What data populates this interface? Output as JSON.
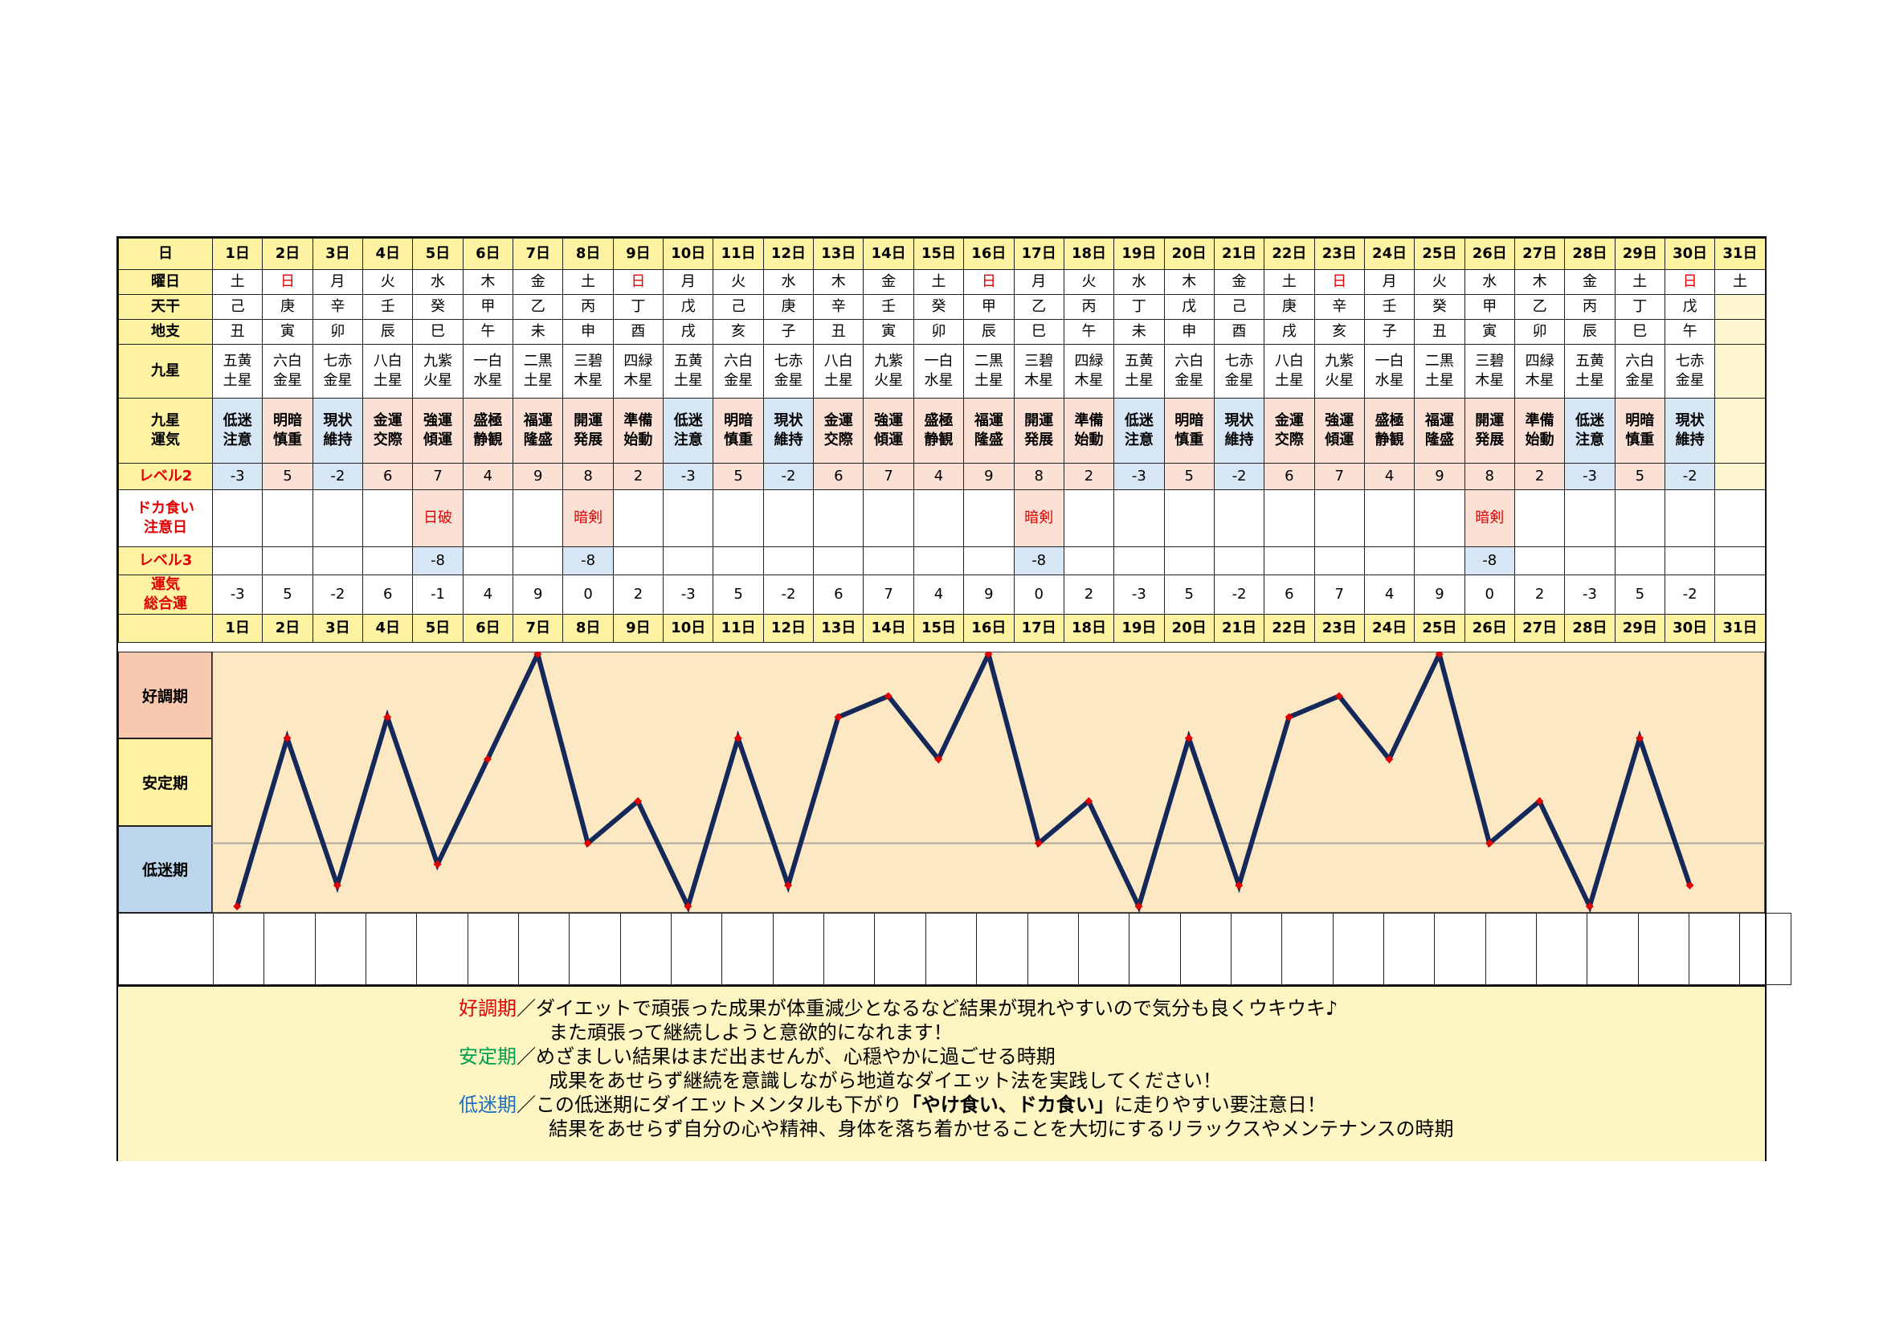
{
  "rows": {
    "day_label": "日",
    "weekday_label": "曜日",
    "tenkan_label": "天干",
    "chishi_label": "地支",
    "kyusei_label": "九星",
    "unki_label": [
      "九星",
      "運気"
    ],
    "level2_label": "レベル2",
    "warning_label": [
      "ドカ食い",
      "注意日"
    ],
    "level3_label": "レベル3",
    "total_label": [
      "運気",
      "総合運"
    ]
  },
  "days": [
    "1日",
    "2日",
    "3日",
    "4日",
    "5日",
    "6日",
    "7日",
    "8日",
    "9日",
    "10日",
    "11日",
    "12日",
    "13日",
    "14日",
    "15日",
    "16日",
    "17日",
    "18日",
    "19日",
    "20日",
    "21日",
    "22日",
    "23日",
    "24日",
    "25日",
    "26日",
    "27日",
    "28日",
    "29日",
    "30日",
    "31日"
  ],
  "weekdays": [
    "土",
    "日",
    "月",
    "火",
    "水",
    "木",
    "金",
    "土",
    "日",
    "月",
    "火",
    "水",
    "木",
    "金",
    "土",
    "日",
    "月",
    "火",
    "水",
    "木",
    "金",
    "土",
    "日",
    "月",
    "火",
    "水",
    "木",
    "金",
    "土",
    "日",
    "土"
  ],
  "sunday_color": "#e00000",
  "tenkan": [
    "己",
    "庚",
    "辛",
    "壬",
    "癸",
    "甲",
    "乙",
    "丙",
    "丁",
    "戊",
    "己",
    "庚",
    "辛",
    "壬",
    "癸",
    "甲",
    "乙",
    "丙",
    "丁",
    "戊",
    "己",
    "庚",
    "辛",
    "壬",
    "癸",
    "甲",
    "乙",
    "丙",
    "丁",
    "戊",
    ""
  ],
  "chishi": [
    "丑",
    "寅",
    "卯",
    "辰",
    "巳",
    "午",
    "未",
    "申",
    "酉",
    "戌",
    "亥",
    "子",
    "丑",
    "寅",
    "卯",
    "辰",
    "巳",
    "午",
    "未",
    "申",
    "酉",
    "戌",
    "亥",
    "子",
    "丑",
    "寅",
    "卯",
    "辰",
    "巳",
    "午",
    ""
  ],
  "kyusei": [
    [
      "五黄",
      "土星"
    ],
    [
      "六白",
      "金星"
    ],
    [
      "七赤",
      "金星"
    ],
    [
      "八白",
      "土星"
    ],
    [
      "九紫",
      "火星"
    ],
    [
      "一白",
      "水星"
    ],
    [
      "二黒",
      "土星"
    ],
    [
      "三碧",
      "木星"
    ],
    [
      "四緑",
      "木星"
    ],
    [
      "五黄",
      "土星"
    ],
    [
      "六白",
      "金星"
    ],
    [
      "七赤",
      "金星"
    ],
    [
      "八白",
      "土星"
    ],
    [
      "九紫",
      "火星"
    ],
    [
      "一白",
      "水星"
    ],
    [
      "二黒",
      "土星"
    ],
    [
      "三碧",
      "木星"
    ],
    [
      "四緑",
      "木星"
    ],
    [
      "五黄",
      "土星"
    ],
    [
      "六白",
      "金星"
    ],
    [
      "七赤",
      "金星"
    ],
    [
      "八白",
      "土星"
    ],
    [
      "九紫",
      "火星"
    ],
    [
      "一白",
      "水星"
    ],
    [
      "二黒",
      "土星"
    ],
    [
      "三碧",
      "木星"
    ],
    [
      "四緑",
      "木星"
    ],
    [
      "五黄",
      "土星"
    ],
    [
      "六白",
      "金星"
    ],
    [
      "七赤",
      "金星"
    ],
    [
      "",
      ""
    ]
  ],
  "unki": [
    [
      "低迷",
      "注意"
    ],
    [
      "明暗",
      "慎重"
    ],
    [
      "現状",
      "維持"
    ],
    [
      "金運",
      "交際"
    ],
    [
      "強運",
      "傾運"
    ],
    [
      "盛極",
      "静観"
    ],
    [
      "福運",
      "隆盛"
    ],
    [
      "開運",
      "発展"
    ],
    [
      "準備",
      "始動"
    ],
    [
      "低迷",
      "注意"
    ],
    [
      "明暗",
      "慎重"
    ],
    [
      "現状",
      "維持"
    ],
    [
      "金運",
      "交際"
    ],
    [
      "強運",
      "傾運"
    ],
    [
      "盛極",
      "静観"
    ],
    [
      "福運",
      "隆盛"
    ],
    [
      "開運",
      "発展"
    ],
    [
      "準備",
      "始動"
    ],
    [
      "低迷",
      "注意"
    ],
    [
      "明暗",
      "慎重"
    ],
    [
      "現状",
      "維持"
    ],
    [
      "金運",
      "交際"
    ],
    [
      "強運",
      "傾運"
    ],
    [
      "盛極",
      "静観"
    ],
    [
      "福運",
      "隆盛"
    ],
    [
      "開運",
      "発展"
    ],
    [
      "準備",
      "始動"
    ],
    [
      "低迷",
      "注意"
    ],
    [
      "明暗",
      "慎重"
    ],
    [
      "現状",
      "維持"
    ],
    [
      "",
      ""
    ]
  ],
  "level2": [
    "-3",
    "5",
    "-2",
    "6",
    "7",
    "4",
    "9",
    "8",
    "2",
    "-3",
    "5",
    "-2",
    "6",
    "7",
    "4",
    "9",
    "8",
    "2",
    "-3",
    "5",
    "-2",
    "6",
    "7",
    "4",
    "9",
    "8",
    "2",
    "-3",
    "5",
    "-2",
    ""
  ],
  "warnings": [
    "",
    "",
    "",
    "",
    "日破",
    "",
    "",
    "暗剣",
    "",
    "",
    "",
    "",
    "",
    "",
    "",
    "",
    "暗剣",
    "",
    "",
    "",
    "",
    "",
    "",
    "",
    "",
    "暗剣",
    "",
    "",
    "",
    "",
    ""
  ],
  "level3": [
    "",
    "",
    "",
    "",
    "-8",
    "",
    "",
    "-8",
    "",
    "",
    "",
    "",
    "",
    "",
    "",
    "",
    "-8",
    "",
    "",
    "",
    "",
    "",
    "",
    "",
    "",
    "-8",
    "",
    "",
    "",
    "",
    ""
  ],
  "cell_colors": {
    "low": "#d7e6f5",
    "high": "#fbe0d5",
    "pad": "#fff7cf"
  },
  "chart_data": {
    "type": "line",
    "x": [
      "1日",
      "2日",
      "3日",
      "4日",
      "5日",
      "6日",
      "7日",
      "8日",
      "9日",
      "10日",
      "11日",
      "12日",
      "13日",
      "14日",
      "15日",
      "16日",
      "17日",
      "18日",
      "19日",
      "20日",
      "21日",
      "22日",
      "23日",
      "24日",
      "25日",
      "26日",
      "27日",
      "28日",
      "29日",
      "30日"
    ],
    "values": [
      -3,
      5,
      -2,
      6,
      -1,
      4,
      9,
      0,
      2,
      -3,
      5,
      -2,
      6,
      7,
      4,
      9,
      0,
      2,
      -3,
      5,
      -2,
      6,
      7,
      4,
      9,
      0,
      2,
      -3,
      5,
      -2
    ],
    "ylim": [
      -3,
      9
    ],
    "bands": [
      {
        "label": "好調期",
        "color": "#f8c9ae"
      },
      {
        "label": "安定期",
        "color": "#fdf3a3"
      },
      {
        "label": "低迷期",
        "color": "#bcd4ec"
      }
    ],
    "plot_bg": "#fde8c4",
    "line_color": "#14285a",
    "marker_color": "#e00000",
    "baseline_value": 0
  },
  "legend": {
    "good_key": "好調期",
    "good_line1": "／ダイエットで頑張った成果が体重減少となるなど結果が現れやすいので気分も良くウキウキ♪",
    "good_line2": "また頑張って継続しようと意欲的になれます！",
    "stable_key": "安定期",
    "stable_line1": "／めざましい結果はまだ出ませんが、心穏やかに過ごせる時期",
    "stable_line2": "成果をあせらず継続を意識しながら地道なダイエット法を実践してください！",
    "low_key": "低迷期",
    "low_line1_a": "／この低迷期にダイエットメンタルも下がり",
    "low_line1_b": "「やけ食い、ドカ食い」",
    "low_line1_c": "に走りやすい要注意日！",
    "low_line2": "結果をあせらず自分の心や精神、身体を落ち着かせることを大切にするリラックスやメンテナンスの時期"
  }
}
